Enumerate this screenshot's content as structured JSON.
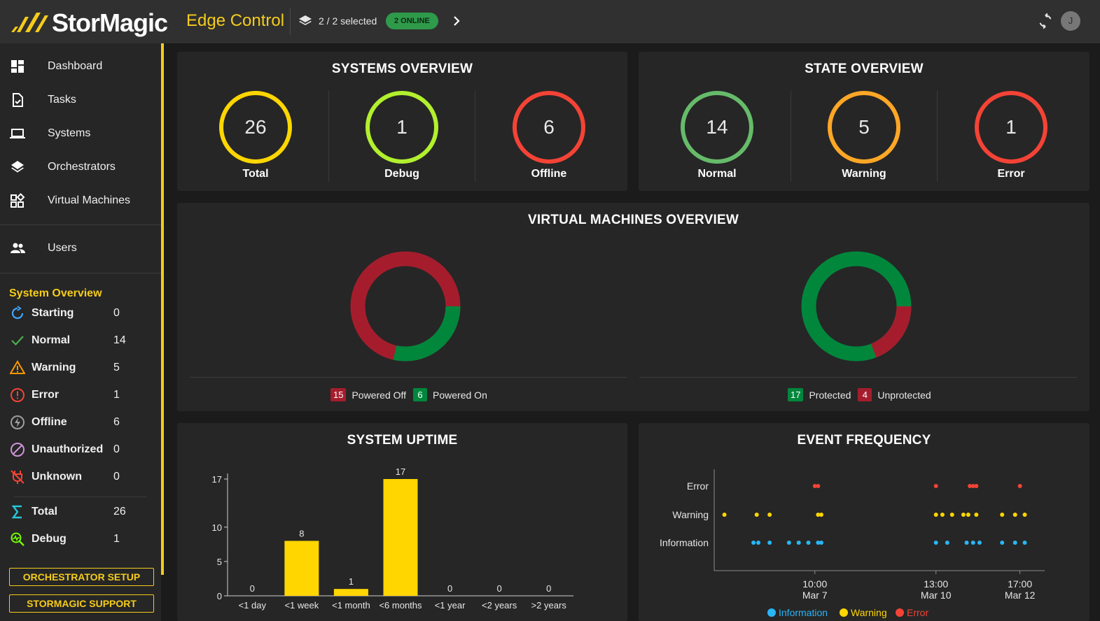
{
  "header": {
    "brand": "StorMagic",
    "app_title": "Edge Control",
    "selection_text": "2 / 2 selected",
    "online_badge": "2 ONLINE",
    "avatar_initial": "J",
    "accent_color": "#f5cc1a"
  },
  "sidebar": {
    "nav": [
      {
        "label": "Dashboard",
        "icon": "dashboard-icon"
      },
      {
        "label": "Tasks",
        "icon": "tasks-icon"
      },
      {
        "label": "Systems",
        "icon": "laptop-icon"
      },
      {
        "label": "Orchestrators",
        "icon": "layers-icon"
      },
      {
        "label": "Virtual Machines",
        "icon": "widgets-icon"
      },
      {
        "label": "Users",
        "icon": "users-icon"
      }
    ],
    "system_overview_title": "System Overview",
    "stats": [
      {
        "label": "Starting",
        "value": "0",
        "icon": "refresh-icon",
        "color": "#3ea6ff"
      },
      {
        "label": "Normal",
        "value": "14",
        "icon": "check-icon",
        "color": "#4caf50"
      },
      {
        "label": "Warning",
        "value": "5",
        "icon": "warning-triangle-icon",
        "color": "#ff9800"
      },
      {
        "label": "Error",
        "value": "1",
        "icon": "error-circle-icon",
        "color": "#f44336"
      },
      {
        "label": "Offline",
        "value": "6",
        "icon": "offline-bolt-icon",
        "color": "#9e9e9e"
      },
      {
        "label": "Unauthorized",
        "value": "0",
        "icon": "block-icon",
        "color": "#ce93d8"
      },
      {
        "label": "Unknown",
        "value": "0",
        "icon": "unplugged-icon",
        "color": "#f44336"
      },
      {
        "label": "Total",
        "value": "26",
        "icon": "sigma-icon",
        "color": "#26c6da"
      },
      {
        "label": "Debug",
        "value": "1",
        "icon": "debug-icon",
        "color": "#76ff03"
      }
    ],
    "orchestrator_setup": "ORCHESTRATOR SETUP",
    "support": "STORMAGIC SUPPORT"
  },
  "systems_overview": {
    "title": "SYSTEMS OVERVIEW",
    "items": [
      {
        "value": "26",
        "label": "Total",
        "color": "#ffd600"
      },
      {
        "value": "1",
        "label": "Debug",
        "color": "#b2f02e"
      },
      {
        "value": "6",
        "label": "Offline",
        "color": "#f44336"
      }
    ]
  },
  "state_overview": {
    "title": "STATE OVERVIEW",
    "items": [
      {
        "value": "14",
        "label": "Normal",
        "color": "#66bb6a"
      },
      {
        "value": "5",
        "label": "Warning",
        "color": "#ffa726"
      },
      {
        "value": "1",
        "label": "Error",
        "color": "#f44336"
      }
    ]
  },
  "vm_overview": {
    "title": "VIRTUAL MACHINES OVERVIEW",
    "power": {
      "off_value": "15",
      "off_label": "Powered Off",
      "on_value": "6",
      "on_label": "Powered On"
    },
    "protection": {
      "protected_value": "17",
      "protected_label": "Protected",
      "unprotected_value": "4",
      "unprotected_label": "Unprotected"
    },
    "colors": {
      "red": "#a51d2d",
      "green": "#00873c"
    }
  },
  "chart_data": [
    {
      "type": "bar",
      "title": "SYSTEM UPTIME",
      "categories": [
        "<1 day",
        "<1 week",
        "<1 month",
        "<6 months",
        "<1 year",
        "<2 years",
        ">2 years"
      ],
      "values": [
        0,
        8,
        1,
        17,
        0,
        0,
        0
      ],
      "data_labels": [
        "0",
        "8",
        "1",
        "17",
        "0",
        "0",
        "0"
      ],
      "yticks": [
        "0",
        "5",
        "10",
        "17"
      ],
      "ylim": [
        0,
        17
      ],
      "color": "#ffd600"
    },
    {
      "type": "scatter",
      "title": "EVENT FREQUENCY",
      "categories": [
        "Error",
        "Warning",
        "Information"
      ],
      "x_ticks": [
        {
          "time": "10:00",
          "date": "Mar 7"
        },
        {
          "time": "13:00",
          "date": "Mar 10"
        },
        {
          "time": "17:00",
          "date": "Mar 12"
        }
      ],
      "legend": [
        "Information",
        "Warning",
        "Error"
      ],
      "series": [
        {
          "name": "Error",
          "color": "#f44336",
          "points": [
            "Mar 7 10:00",
            "Mar 7 12:00",
            "Mar 10 13:00",
            "Mar 11 10:00",
            "Mar 11 12:00",
            "Mar 11 14:00",
            "Mar 12 17:00"
          ]
        },
        {
          "name": "Warning",
          "color": "#ffd600",
          "points": [
            "Mar 5 02:00",
            "Mar 5 22:00",
            "Mar 6 06:00",
            "Mar 7 12:00",
            "Mar 7 14:00",
            "Mar 10 13:00",
            "Mar 10 17:00",
            "Mar 10 23:00",
            "Mar 11 06:00",
            "Mar 11 09:00",
            "Mar 11 14:00",
            "Mar 12 06:00",
            "Mar 12 14:00",
            "Mar 12 20:00"
          ]
        },
        {
          "name": "Information",
          "color": "#29b6f6",
          "points": [
            "Mar 5 20:00",
            "Mar 5 23:00",
            "Mar 6 06:00",
            "Mar 6 18:00",
            "Mar 7 00:00",
            "Mar 7 06:00",
            "Mar 7 12:00",
            "Mar 7 14:00",
            "Mar 10 13:00",
            "Mar 10 20:00",
            "Mar 11 08:00",
            "Mar 11 12:00",
            "Mar 11 16:00",
            "Mar 12 06:00",
            "Mar 12 14:00",
            "Mar 12 20:00"
          ]
        }
      ]
    }
  ]
}
